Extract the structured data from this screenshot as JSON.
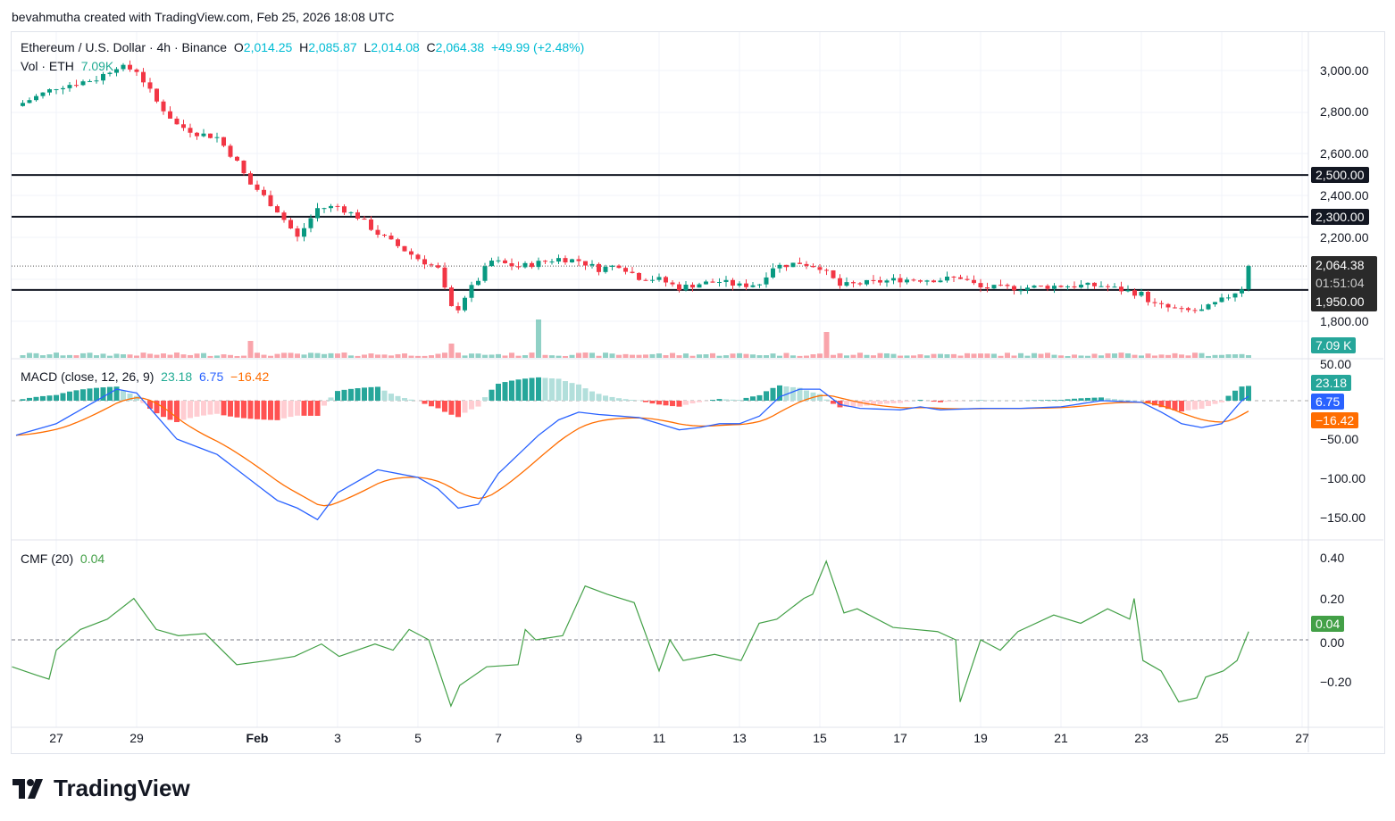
{
  "credit": "bevahmutha created with TradingView.com, Feb 25, 2026 18:08 UTC",
  "legend": {
    "symbol": "Ethereum / U.S. Dollar · 4h · Binance",
    "o_label": "O",
    "o": "2,014.25",
    "h_label": "H",
    "h": "2,085.87",
    "l_label": "L",
    "l": "2,014.08",
    "c_label": "C",
    "c": "2,064.38",
    "change": "+49.99 (+2.48%)",
    "vol_label": "Vol · ETH",
    "vol": "7.09K"
  },
  "macd_legend": {
    "label": "MACD (close, 12, 26, 9)",
    "hist": "23.18",
    "macd": "6.75",
    "signal": "−16.42"
  },
  "cmf_legend": {
    "label": "CMF (20)",
    "value": "0.04"
  },
  "price_axis": [
    "3,000.00",
    "2,800.00",
    "2,600.00",
    "2,400.00",
    "2,200.00",
    "1,800.00"
  ],
  "price_tags": {
    "l2500": "2,500.00",
    "l2300": "2,300.00",
    "last": "2,064.38",
    "countdown": "01:51:04",
    "l1950": "1,950.00",
    "volume": "7.09 K"
  },
  "macd_axis": [
    "50.00",
    "−50.00",
    "−100.00",
    "−150.00"
  ],
  "macd_tags": {
    "hist": "23.18",
    "macd": "6.75",
    "signal": "−16.42"
  },
  "cmf_axis": [
    "0.40",
    "0.20",
    "0.00",
    "−0.20"
  ],
  "cmf_tag": "0.04",
  "x_axis": [
    {
      "d": 0,
      "t": "27"
    },
    {
      "d": 2,
      "t": "29"
    },
    {
      "d": 5,
      "t": "Feb"
    },
    {
      "d": 7,
      "t": "3"
    },
    {
      "d": 9,
      "t": "5"
    },
    {
      "d": 11,
      "t": "7"
    },
    {
      "d": 13,
      "t": "9"
    },
    {
      "d": 15,
      "t": "11"
    },
    {
      "d": 17,
      "t": "13"
    },
    {
      "d": 19,
      "t": "15"
    },
    {
      "d": 21,
      "t": "17"
    },
    {
      "d": 23,
      "t": "19"
    },
    {
      "d": 25,
      "t": "21"
    },
    {
      "d": 27,
      "t": "23"
    },
    {
      "d": 29,
      "t": "25"
    },
    {
      "d": 31,
      "t": "27"
    }
  ],
  "logo": "TradingView",
  "colors": {
    "up": "#089981",
    "down": "#f23645",
    "macd": "#2962ff",
    "signal": "#ff6d00",
    "cmf": "#43a047"
  },
  "chart_data": {
    "type": "candlestick",
    "x_unit": "days since Jan 27",
    "horizontal_levels": [
      2500,
      2300,
      1950
    ],
    "last_price": 2064.38,
    "price_path": [
      [
        -1,
        2830
      ],
      [
        0,
        2920
      ],
      [
        1,
        2960
      ],
      [
        1.5,
        3020
      ],
      [
        2,
        3000
      ],
      [
        2.5,
        2850
      ],
      [
        3,
        2740
      ],
      [
        3.5,
        2700
      ],
      [
        4,
        2680
      ],
      [
        4.5,
        2560
      ],
      [
        4.8,
        2460
      ],
      [
        5,
        2430
      ],
      [
        5.5,
        2330
      ],
      [
        6,
        2200
      ],
      [
        6.5,
        2340
      ],
      [
        7,
        2350
      ],
      [
        7.5,
        2300
      ],
      [
        8,
        2220
      ],
      [
        8.5,
        2160
      ],
      [
        9,
        2100
      ],
      [
        9.5,
        2050
      ],
      [
        9.7,
        1930
      ],
      [
        9.9,
        1830
      ],
      [
        10.2,
        1930
      ],
      [
        10.5,
        2000
      ],
      [
        10.8,
        2090
      ],
      [
        11.5,
        2060
      ],
      [
        12,
        2080
      ],
      [
        12.5,
        2100
      ],
      [
        13,
        2090
      ],
      [
        13.5,
        2050
      ],
      [
        14,
        2070
      ],
      [
        14.5,
        2010
      ],
      [
        15,
        2000
      ],
      [
        15.5,
        1960
      ],
      [
        16,
        1980
      ],
      [
        16.5,
        1990
      ],
      [
        17,
        1970
      ],
      [
        17.5,
        1980
      ],
      [
        17.8,
        2060
      ],
      [
        18.5,
        2080
      ],
      [
        19,
        2060
      ],
      [
        19.5,
        1970
      ],
      [
        20,
        1980
      ],
      [
        21,
        2000
      ],
      [
        22,
        2000
      ],
      [
        22.5,
        2010
      ],
      [
        23,
        1960
      ],
      [
        24,
        1960
      ],
      [
        25,
        1970
      ],
      [
        26,
        1970
      ],
      [
        27,
        1930
      ],
      [
        27.3,
        1880
      ],
      [
        28,
        1850
      ],
      [
        28.5,
        1850
      ],
      [
        29,
        1900
      ],
      [
        29.5,
        1960
      ],
      [
        29.7,
        2064
      ]
    ],
    "volume_spikes": [
      [
        4.8,
        1900
      ],
      [
        9.9,
        1600
      ],
      [
        12,
        4300
      ],
      [
        19.1,
        2900
      ]
    ],
    "macd_path": [
      [
        -1,
        -45
      ],
      [
        0,
        -30
      ],
      [
        1.5,
        15
      ],
      [
        2,
        10
      ],
      [
        2.5,
        -20
      ],
      [
        3,
        -50
      ],
      [
        4,
        -70
      ],
      [
        5,
        -110
      ],
      [
        5.5,
        -130
      ],
      [
        6,
        -140
      ],
      [
        6.5,
        -155
      ],
      [
        7,
        -120
      ],
      [
        7.5,
        -105
      ],
      [
        8,
        -90
      ],
      [
        8.5,
        -95
      ],
      [
        9,
        -100
      ],
      [
        9.5,
        -115
      ],
      [
        10,
        -140
      ],
      [
        10.5,
        -135
      ],
      [
        11,
        -95
      ],
      [
        11.5,
        -70
      ],
      [
        12,
        -45
      ],
      [
        12.5,
        -25
      ],
      [
        13,
        -15
      ],
      [
        13.5,
        -18
      ],
      [
        14,
        -20
      ],
      [
        14.5,
        -22
      ],
      [
        15,
        -30
      ],
      [
        15.5,
        -38
      ],
      [
        16,
        -35
      ],
      [
        16.5,
        -30
      ],
      [
        17,
        -30
      ],
      [
        17.5,
        -20
      ],
      [
        18,
        5
      ],
      [
        18.5,
        15
      ],
      [
        19,
        15
      ],
      [
        19.5,
        -5
      ],
      [
        20,
        -10
      ],
      [
        21,
        -12
      ],
      [
        21.5,
        -8
      ],
      [
        22,
        -12
      ],
      [
        23,
        -10
      ],
      [
        24,
        -10
      ],
      [
        25,
        -8
      ],
      [
        26,
        0
      ],
      [
        27,
        -2
      ],
      [
        27.5,
        -15
      ],
      [
        28,
        -30
      ],
      [
        28.5,
        -35
      ],
      [
        29,
        -30
      ],
      [
        29.5,
        0
      ],
      [
        29.7,
        6.75
      ]
    ],
    "cmf_path": [
      [
        -1.1,
        -0.13
      ],
      [
        -0.5,
        -0.17
      ],
      [
        -0.18,
        -0.19
      ],
      [
        0,
        -0.05
      ],
      [
        0.6,
        0.05
      ],
      [
        1.27,
        0.1
      ],
      [
        1.93,
        0.2
      ],
      [
        2.49,
        0.05
      ],
      [
        3.04,
        0.02
      ],
      [
        3.71,
        0.03
      ],
      [
        4.49,
        -0.12
      ],
      [
        5.27,
        -0.1
      ],
      [
        5.93,
        -0.08
      ],
      [
        6.6,
        -0.02
      ],
      [
        7.04,
        -0.08
      ],
      [
        7.93,
        -0.02
      ],
      [
        8.38,
        -0.05
      ],
      [
        8.78,
        0.05
      ],
      [
        9.27,
        0
      ],
      [
        9.82,
        -0.32
      ],
      [
        10.04,
        -0.22
      ],
      [
        10.71,
        -0.13
      ],
      [
        11.49,
        -0.12
      ],
      [
        11.67,
        0.05
      ],
      [
        11.93,
        0
      ],
      [
        12.6,
        0.02
      ],
      [
        13.16,
        0.26
      ],
      [
        13.71,
        0.22
      ],
      [
        14.38,
        0.18
      ],
      [
        15,
        -0.15
      ],
      [
        15.27,
        0
      ],
      [
        15.6,
        -0.1
      ],
      [
        16.38,
        -0.07
      ],
      [
        17.04,
        -0.1
      ],
      [
        17.49,
        0.08
      ],
      [
        17.93,
        0.1
      ],
      [
        18.6,
        0.2
      ],
      [
        18.82,
        0.22
      ],
      [
        19.16,
        0.38
      ],
      [
        19.6,
        0.13
      ],
      [
        19.93,
        0.15
      ],
      [
        20.82,
        0.06
      ],
      [
        21.93,
        0.04
      ],
      [
        22.38,
        0
      ],
      [
        22.49,
        -0.3
      ],
      [
        23,
        0
      ],
      [
        23.49,
        -0.05
      ],
      [
        23.93,
        0.04
      ],
      [
        24.82,
        0.12
      ],
      [
        25.49,
        0.08
      ],
      [
        26.16,
        0.15
      ],
      [
        26.71,
        0.1
      ],
      [
        26.82,
        0.2
      ],
      [
        27.04,
        -0.1
      ],
      [
        27.49,
        -0.15
      ],
      [
        27.93,
        -0.3
      ],
      [
        28.38,
        -0.28
      ],
      [
        28.6,
        -0.18
      ],
      [
        29.04,
        -0.15
      ],
      [
        29.38,
        -0.1
      ],
      [
        29.67,
        0.04
      ]
    ],
    "ylim_price": [
      1750,
      3050
    ],
    "ylim_macd": [
      -160,
      55
    ],
    "ylim_cmf": [
      -0.3,
      0.42
    ]
  }
}
